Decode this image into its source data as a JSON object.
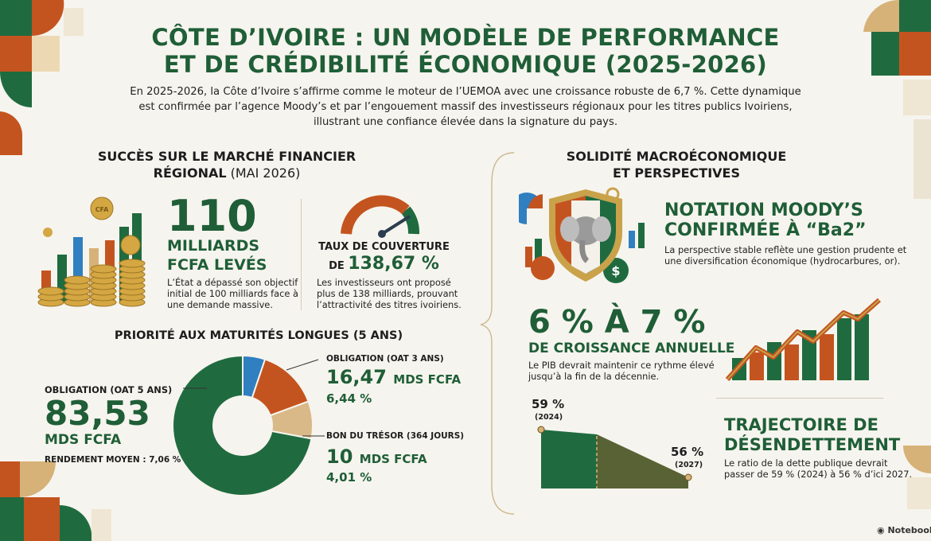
{
  "header": {
    "title_line1": "CÔTE D’IVOIRE : UN MODÈLE DE PERFORMANCE",
    "title_line2": "ET DE CRÉDIBILITÉ ÉCONOMIQUE (2025-2026)",
    "intro_line1": "En 2025-2026, la Côte d’Ivoire s’affirme comme le moteur de l’UEMOA avec une croissance robuste de 6,7 %. Cette dynamique",
    "intro_line2": "est confirmée par l’agence Moody’s et par l’engouement massif des investisseurs régionaux pour les titres publics Ivoiriens,",
    "intro_line3": "illustrant une confiance élevée dans la signature du pays."
  },
  "left_section": {
    "heading_line1": "SUCCÈS SUR LE MARCHÉ FINANCIER",
    "heading_line2_bold": "RÉGIONAL",
    "heading_line2_light": " (MAI 2026)",
    "coin_label": "CFA",
    "raised": {
      "value": "110",
      "label_line1": "MILLIARDS",
      "label_line2": "FCFA LEVÉS",
      "desc_line1": "L’État a dépassé son objectif",
      "desc_line2": "initial de 100 milliards face à",
      "desc_line3": "une demande massive."
    },
    "coverage": {
      "label_line1": "TAUX DE COUVERTURE",
      "label_prefix": "DE ",
      "value": "138,67 %",
      "gauge_level": 0.82,
      "desc_line1": "Les investisseurs ont proposé",
      "desc_line2": "plus de 138 milliards, prouvant",
      "desc_line3": "l’attractivité des titres ivoiriens."
    },
    "maturity_heading": "PRIORITÉ AUX MATURITÉS LONGUES (5 ANS)"
  },
  "donut": {
    "oat5": {
      "label": "OBLIGATION (OAT 5 ANS)",
      "value": "83,53",
      "unit": "MDS FCFA",
      "yield_label": "RENDEMENT MOYEN : 7,06 %",
      "amount": 83.53,
      "color": "#1f6b3f"
    },
    "oat3": {
      "label": "OBLIGATION (OAT 3 ANS)",
      "value": "16,47",
      "unit": "MDS FCFA",
      "pct": "6,44 %",
      "amount": 16.47,
      "color": "#c4541f"
    },
    "bt": {
      "label": "BON DU TRÉSOR (364 JOURS)",
      "value": "10",
      "unit": "MDS FCFA",
      "pct": "4,01 %",
      "amount": 10,
      "color": "#d9b987"
    },
    "blue": {
      "amount": 6,
      "color": "#2f7fc1"
    }
  },
  "right_section": {
    "heading_line1": "SOLIDITÉ MACROÉCONOMIQUE",
    "heading_line2": "ET PERSPECTIVES",
    "moodys": {
      "title_line1": "NOTATION MOODY’S",
      "title_line2": "CONFIRMÉE À “Ba2”",
      "desc_line1": "La perspective stable reflète une gestion prudente et",
      "desc_line2": "une diversification économique (hydrocarbures, or)."
    },
    "growth": {
      "value": "6 % À 7 %",
      "label": "DE CROISSANCE ANNUELLE",
      "desc_line1": "Le PIB devrait maintenir ce rythme élevé",
      "desc_line2": "jusqu’à la fin de la décennie."
    },
    "debt": {
      "start_value": "59 %",
      "start_year": "(2024)",
      "end_value": "56 %",
      "end_year": "(2027)",
      "title_line1": "TRAJECTOIRE DE",
      "title_line2": "DÉSENDETTEMENT",
      "desc_line1": "Le ratio de la dette publique devrait",
      "desc_line2": "passer de 59 % (2024) à 56 % d’ici 2027."
    }
  },
  "colors": {
    "green": "#1f5e37",
    "orange": "#c4541f",
    "gold": "#c9a24a",
    "blue": "#2f7fc1",
    "background": "#f6f4ee"
  },
  "footer": {
    "brand": "Notebook"
  }
}
